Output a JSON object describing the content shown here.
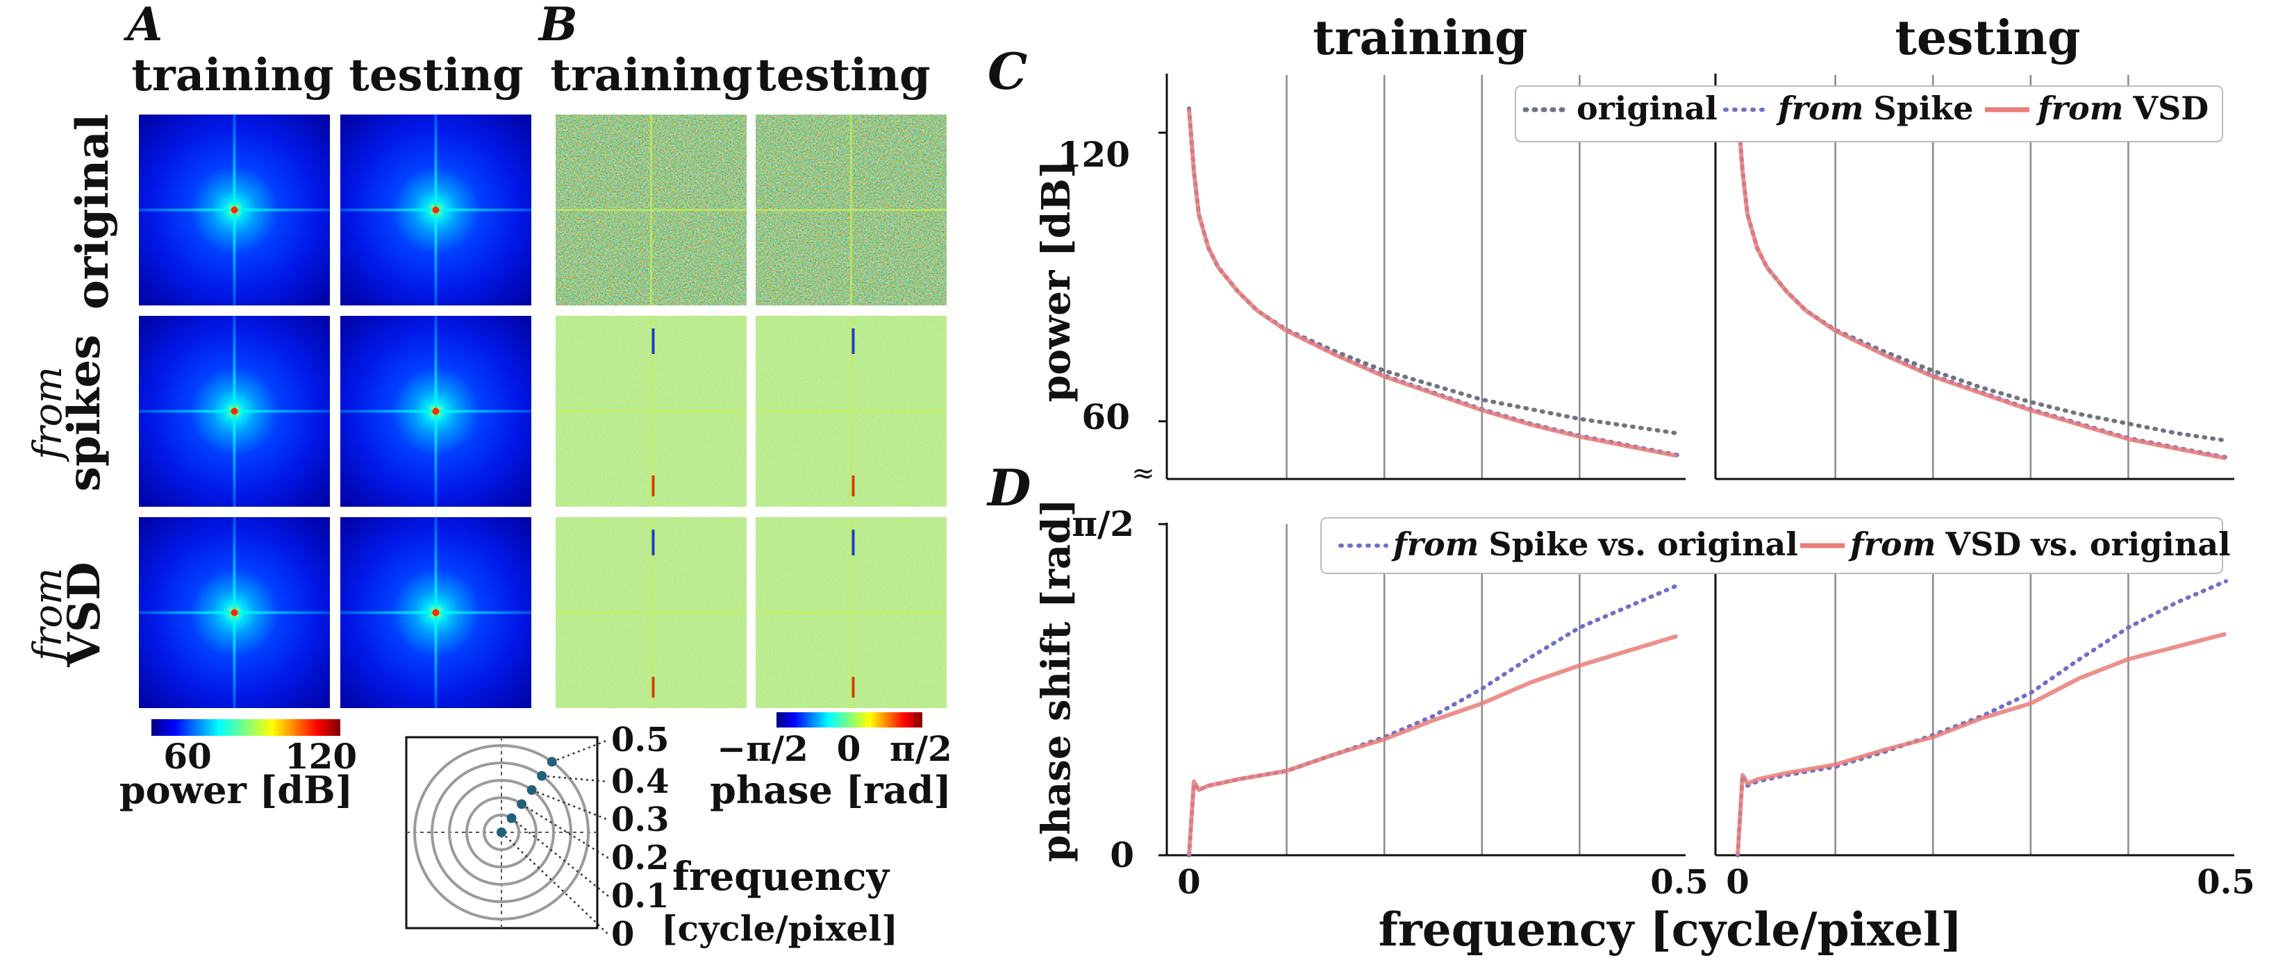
{
  "panels": {
    "a": "A",
    "b": "B",
    "c": "C",
    "d": "D"
  },
  "conditions": {
    "train": "training",
    "test": "testing"
  },
  "rows": [
    {
      "pre": "",
      "main": "original"
    },
    {
      "pre": "from",
      "main": "spikes"
    },
    {
      "pre": "from",
      "main": "VSD"
    }
  ],
  "power_colorbar": {
    "min_label": "60",
    "max_label": "120",
    "label": "power [dB]",
    "colormap": "jet"
  },
  "phase_colorbar": {
    "min_label": "−π/2",
    "mid_label": "0",
    "max_label": "π/2",
    "label": "phase [rad]"
  },
  "freq_diagram": {
    "rings": [
      "0.5",
      "0.4",
      "0.3",
      "0.2",
      "0.1",
      "0"
    ],
    "label_line1": "frequency",
    "label_line2": "[cycle/pixel]",
    "dot_color": "#23607a"
  },
  "chart_data": [
    {
      "type": "line",
      "panel": "C",
      "ylabel": "power [dB]",
      "xlabel": "frequency [cycle/pixel]",
      "xlim": [
        0,
        0.5
      ],
      "ylim": [
        48,
        132
      ],
      "yticks": [
        "120",
        "60"
      ],
      "break_marker": "≈",
      "subplots": [
        "training",
        "testing"
      ],
      "legend": [
        {
          "pre": "",
          "name": "original",
          "style": "dotted",
          "color": "#707480"
        },
        {
          "pre": "from",
          "name": "Spike",
          "style": "dotted",
          "color": "#7070c8"
        },
        {
          "pre": "from",
          "name": "VSD",
          "style": "solid",
          "color": "#e87c78"
        }
      ],
      "series": [
        {
          "name": "original",
          "training": {
            "x": [
              0,
              0.005,
              0.01,
              0.02,
              0.03,
              0.05,
              0.07,
              0.1,
              0.15,
              0.2,
              0.25,
              0.3,
              0.35,
              0.4,
              0.45,
              0.5
            ],
            "y": [
              125,
              112,
              103,
              96,
              92,
              87,
              83,
              79,
              74.5,
              70.5,
              67.5,
              64.5,
              62.5,
              60.5,
              59,
              57.5
            ]
          },
          "testing": {
            "x": [
              0,
              0.005,
              0.01,
              0.02,
              0.03,
              0.05,
              0.07,
              0.1,
              0.15,
              0.2,
              0.25,
              0.3,
              0.35,
              0.4,
              0.45,
              0.5
            ],
            "y": [
              125,
              112,
              103,
              96,
              92,
              87,
              83,
              79,
              74.5,
              70.5,
              67,
              64,
              61.5,
              59.5,
              57.5,
              56
            ]
          }
        },
        {
          "name": "from Spike",
          "training": {
            "x": [
              0,
              0.005,
              0.01,
              0.02,
              0.03,
              0.05,
              0.07,
              0.1,
              0.15,
              0.2,
              0.25,
              0.3,
              0.35,
              0.4,
              0.45,
              0.5
            ],
            "y": [
              125,
              112,
              103,
              96,
              92,
              87,
              83,
              79,
              74,
              69.5,
              66,
              62.5,
              59.5,
              57,
              55,
              53
            ]
          },
          "testing": {
            "x": [
              0,
              0.005,
              0.01,
              0.02,
              0.03,
              0.05,
              0.07,
              0.1,
              0.15,
              0.2,
              0.25,
              0.3,
              0.35,
              0.4,
              0.45,
              0.5
            ],
            "y": [
              125,
              112,
              103,
              96,
              92,
              87,
              83,
              79,
              74,
              69.5,
              66,
              62.5,
              59.5,
              56.5,
              54.5,
              52.5
            ]
          }
        },
        {
          "name": "from VSD",
          "training": {
            "x": [
              0,
              0.005,
              0.01,
              0.02,
              0.03,
              0.05,
              0.07,
              0.1,
              0.15,
              0.2,
              0.25,
              0.3,
              0.35,
              0.4,
              0.45,
              0.5
            ],
            "y": [
              125,
              112,
              103,
              96,
              92,
              87,
              83,
              78.8,
              73.8,
              69.3,
              65.8,
              62.3,
              59.3,
              56.8,
              54.8,
              52.8
            ]
          },
          "testing": {
            "x": [
              0,
              0.005,
              0.01,
              0.02,
              0.03,
              0.05,
              0.07,
              0.1,
              0.15,
              0.2,
              0.25,
              0.3,
              0.35,
              0.4,
              0.45,
              0.5
            ],
            "y": [
              125,
              112,
              103,
              96,
              92,
              87,
              83,
              78.8,
              73.8,
              69.3,
              65.8,
              62.3,
              59.3,
              56.3,
              54.3,
              52.3
            ]
          }
        }
      ]
    },
    {
      "type": "line",
      "panel": "D",
      "ylabel": "phase shift [rad]",
      "xlabel": "frequency [cycle/pixel]",
      "xlim": [
        0,
        0.5
      ],
      "ylim": [
        0,
        1.5708
      ],
      "yticks": [
        "π/2",
        "0"
      ],
      "xticks": [
        "0",
        "0.5"
      ],
      "gridlines_x": [
        0.1,
        0.2,
        0.3,
        0.4
      ],
      "subplots": [
        "training",
        "testing"
      ],
      "legend": [
        {
          "pre": "from",
          "name": "Spike",
          "post": "vs. original",
          "style": "dotted",
          "color": "#7070c8"
        },
        {
          "pre": "from",
          "name": "VSD",
          "post": "vs. original",
          "style": "solid",
          "color": "#e87c78"
        }
      ],
      "series": [
        {
          "name": "from Spike vs. original",
          "training": {
            "x": [
              0,
              0.005,
              0.01,
              0.02,
              0.05,
              0.1,
              0.15,
              0.2,
              0.25,
              0.3,
              0.35,
              0.4,
              0.45,
              0.5
            ],
            "y": [
              0,
              0.34,
              0.31,
              0.33,
              0.36,
              0.4,
              0.48,
              0.56,
              0.66,
              0.79,
              0.94,
              1.08,
              1.18,
              1.28
            ]
          },
          "testing": {
            "x": [
              0,
              0.005,
              0.01,
              0.02,
              0.05,
              0.1,
              0.15,
              0.2,
              0.25,
              0.3,
              0.35,
              0.4,
              0.45,
              0.5
            ],
            "y": [
              0,
              0.38,
              0.33,
              0.35,
              0.38,
              0.42,
              0.49,
              0.57,
              0.66,
              0.77,
              0.93,
              1.08,
              1.2,
              1.3
            ]
          }
        },
        {
          "name": "from VSD vs. original",
          "training": {
            "x": [
              0,
              0.005,
              0.01,
              0.02,
              0.05,
              0.1,
              0.15,
              0.2,
              0.25,
              0.3,
              0.35,
              0.4,
              0.45,
              0.5
            ],
            "y": [
              0,
              0.35,
              0.31,
              0.33,
              0.36,
              0.4,
              0.48,
              0.55,
              0.64,
              0.72,
              0.82,
              0.9,
              0.97,
              1.04
            ]
          },
          "testing": {
            "x": [
              0,
              0.005,
              0.01,
              0.02,
              0.05,
              0.1,
              0.15,
              0.2,
              0.25,
              0.3,
              0.35,
              0.4,
              0.45,
              0.5
            ],
            "y": [
              0,
              0.38,
              0.34,
              0.36,
              0.39,
              0.43,
              0.5,
              0.56,
              0.65,
              0.72,
              0.84,
              0.93,
              0.99,
              1.05
            ]
          }
        }
      ]
    }
  ]
}
